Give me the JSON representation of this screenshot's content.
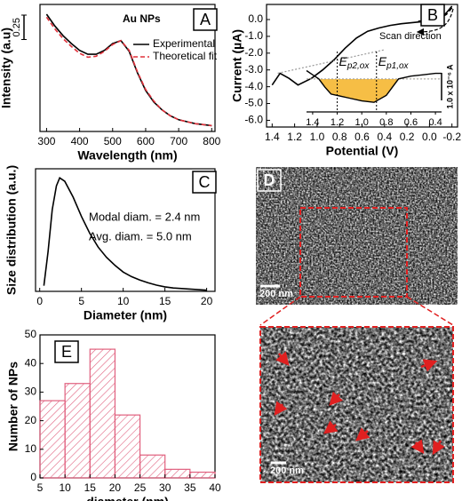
{
  "chart_data": [
    {
      "type": "line",
      "label": "A",
      "annotation": "Au NPs",
      "xlabel": "Wavelength (nm)",
      "ylabel": "Intensity (a.u)",
      "x": [
        300,
        325,
        350,
        375,
        400,
        425,
        450,
        475,
        500,
        525,
        550,
        575,
        600,
        625,
        650,
        675,
        700,
        725,
        750,
        775,
        800
      ],
      "series": [
        {
          "name": "Experimental",
          "color": "#000000",
          "style": "solid",
          "values": [
            1.2,
            1.08,
            0.98,
            0.9,
            0.83,
            0.79,
            0.79,
            0.83,
            0.9,
            0.93,
            0.82,
            0.6,
            0.42,
            0.3,
            0.22,
            0.16,
            0.12,
            0.1,
            0.08,
            0.07,
            0.06
          ]
        },
        {
          "name": "Theoretical fit",
          "color": "#e0303a",
          "style": "dashed",
          "values": [
            1.17,
            1.05,
            0.95,
            0.87,
            0.8,
            0.76,
            0.77,
            0.82,
            0.89,
            0.93,
            0.83,
            0.61,
            0.43,
            0.31,
            0.22,
            0.16,
            0.12,
            0.1,
            0.08,
            0.07,
            0.06
          ]
        }
      ],
      "xlim": [
        280,
        810
      ],
      "ylim": [
        0,
        1.3
      ],
      "xticks": [
        300,
        400,
        500,
        600,
        700,
        800
      ],
      "scale_bar": 0.25,
      "legend": "upper right"
    },
    {
      "type": "line",
      "label": "B",
      "xlabel": "Potential (V)",
      "ylabel": "Current (µA)",
      "scan_label": "Scan direction",
      "series": [
        {
          "color": "#000000",
          "style": "solid",
          "x": [
            1.4,
            1.33,
            1.25,
            1.17,
            1.05,
            0.95,
            0.85,
            0.75,
            0.65,
            0.55,
            0.45,
            0.35,
            0.25,
            0.1,
            0,
            -0.1,
            -0.15,
            -0.2
          ],
          "values": [
            -3.9,
            -3.2,
            -3.5,
            -3.9,
            -3.5,
            -3.0,
            -2.4,
            -1.7,
            -1.1,
            -0.7,
            -0.5,
            -0.35,
            -0.25,
            -0.15,
            -0.1,
            0.1,
            0.4,
            0.8
          ]
        },
        {
          "color": "#000000",
          "style": "dashed",
          "x": [
            -0.2,
            -0.15,
            -0.08,
            0.0,
            0.1
          ],
          "values": [
            0.7,
            0.3,
            0.05,
            -0.05,
            -0.1
          ]
        },
        {
          "color": "#999999",
          "style": "dotted",
          "x": [
            1.35,
            0.4
          ],
          "values": [
            -3.2,
            -1.8
          ]
        }
      ],
      "xlim": [
        1.45,
        -0.25
      ],
      "ylim": [
        -6.4,
        0.9
      ],
      "xticks": [
        1.4,
        1.2,
        {
          "value": 1,
          "label": "1.0"
        },
        0.8,
        0.6,
        0.4,
        0.2,
        {
          "value": 0,
          "label": "0.0"
        },
        -0.2
      ],
      "yticks": [
        {
          "value": 0,
          "label": "0.0"
        },
        {
          "value": -1,
          "label": "-1.0"
        },
        {
          "value": -2,
          "label": "-2.0"
        },
        {
          "value": -3,
          "label": "-3.0"
        },
        {
          "value": -4,
          "label": "-4.0"
        },
        {
          "value": -5,
          "label": "-5.0"
        },
        {
          "value": -6,
          "label": "-6.0"
        }
      ]
    },
    {
      "type": "area",
      "color": "#f5b324",
      "x": [
        1.45,
        1.4,
        1.35,
        1.3,
        1.25,
        1.2,
        1.1,
        1.0,
        0.9,
        0.8,
        0.75,
        0.7,
        0.6,
        0.5,
        0.4,
        0.35
      ],
      "values": [
        0.3,
        0.15,
        0.0,
        -0.3,
        -0.55,
        -0.6,
        -0.7,
        -0.8,
        -0.85,
        -0.6,
        -0.3,
        0.0,
        0.1,
        0.15,
        0.2,
        0.2
      ],
      "xlim": [
        1.45,
        0.35
      ],
      "ylim": [
        -1.2,
        0.35
      ],
      "xticks": [
        1.4,
        1.2,
        {
          "value": 1,
          "label": "1.0"
        },
        0.8,
        0.6,
        0.4
      ],
      "peaks": [
        {
          "label": "E",
          "sub": "p2,ox",
          "x": 1.2
        },
        {
          "label": "E",
          "sub": "p1,ox",
          "x": 0.88
        }
      ],
      "scale_bar": {
        "value": 1,
        "label": "1.0 x 10⁻⁶ A"
      }
    },
    {
      "type": "line",
      "label": "C",
      "xlabel": "Diameter (nm)",
      "ylabel": "Size distribution (a.u.)",
      "color": "#000000",
      "annotations": [
        "Modal diam. = 2.4 nm",
        "Avg. diam. = 5.0 nm"
      ],
      "x": [
        0.5,
        1,
        1.5,
        2,
        2.4,
        3,
        4,
        5,
        6,
        7,
        8,
        9,
        10,
        11,
        12,
        13,
        14,
        15,
        16,
        18,
        20
      ],
      "values": [
        0.05,
        0.35,
        0.72,
        0.93,
        1.0,
        0.97,
        0.83,
        0.66,
        0.51,
        0.39,
        0.3,
        0.23,
        0.17,
        0.13,
        0.1,
        0.075,
        0.055,
        0.04,
        0.03,
        0.02,
        0.01
      ],
      "xlim": [
        -0.5,
        21
      ],
      "ylim": [
        0,
        1.08
      ],
      "xticks": [
        0,
        5,
        10,
        15,
        20
      ]
    },
    {
      "type": "histogram",
      "label": "E",
      "xlabel": "diameter (nm)",
      "ylabel": "Number of NPs",
      "color": "#e0607e",
      "bins": [
        5,
        10,
        15,
        20,
        25,
        30,
        35,
        40
      ],
      "values": [
        27,
        33,
        45,
        22,
        8,
        3,
        2
      ],
      "xlim": [
        5,
        40
      ],
      "ylim": [
        0,
        50
      ],
      "xticks": [
        5,
        10,
        15,
        20,
        25,
        30,
        35,
        40
      ],
      "yticks": [
        0,
        10,
        20,
        30,
        40,
        50
      ]
    }
  ],
  "images": {
    "label": "D",
    "scale_bars": [
      "200 nm",
      "200 nm"
    ]
  }
}
